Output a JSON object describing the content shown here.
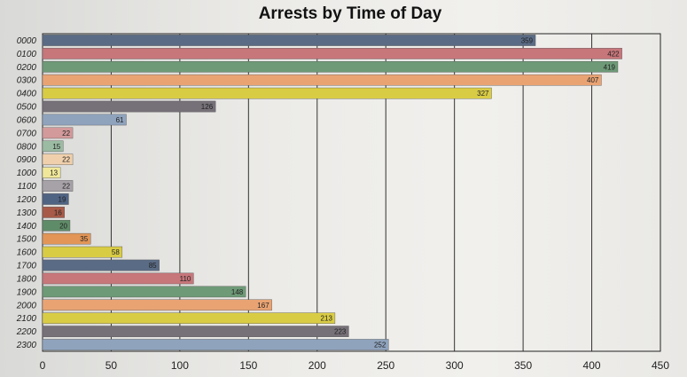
{
  "chart_data": {
    "type": "bar",
    "orientation": "horizontal",
    "title": "Arrests by Time of Day",
    "xlabel": "",
    "ylabel": "",
    "xlim": [
      0,
      450
    ],
    "xticks": [
      "0",
      "50",
      "100",
      "150",
      "200",
      "250",
      "300",
      "350",
      "400",
      "450"
    ],
    "grid": "vertical",
    "categories": [
      "0000",
      "0100",
      "0200",
      "0300",
      "0400",
      "0500",
      "0600",
      "0700",
      "0800",
      "0900",
      "1000",
      "1100",
      "1200",
      "1300",
      "1400",
      "1500",
      "1600",
      "1700",
      "1800",
      "1900",
      "2000",
      "2100",
      "2200",
      "2300"
    ],
    "values": [
      359,
      422,
      419,
      407,
      327,
      126,
      61,
      22,
      15,
      22,
      13,
      22,
      19,
      16,
      20,
      35,
      58,
      85,
      110,
      148,
      167,
      213,
      223,
      252
    ],
    "data_labels": [
      "359",
      "422",
      "419",
      "407",
      "327",
      "126",
      "61",
      "22",
      "15",
      "22",
      "13",
      "22",
      "19",
      "16",
      "20",
      "35",
      "58",
      "85",
      "110",
      "148",
      "167",
      "213",
      "223",
      "252"
    ],
    "colors": [
      "#5a6b85",
      "#c7767a",
      "#6e9a77",
      "#e9a373",
      "#d9cc45",
      "#767078",
      "#8fa3bd",
      "#d39a9b",
      "#9bbba2",
      "#f0d0ac",
      "#f0e79a",
      "#a7a2a8",
      "#4f6383",
      "#a85a48",
      "#5f8c68",
      "#e29556",
      "#d9cc45",
      "#5a6b85",
      "#c7767a",
      "#6e9a77",
      "#e9a373",
      "#d9cc45",
      "#767078",
      "#8fa3bd"
    ]
  }
}
